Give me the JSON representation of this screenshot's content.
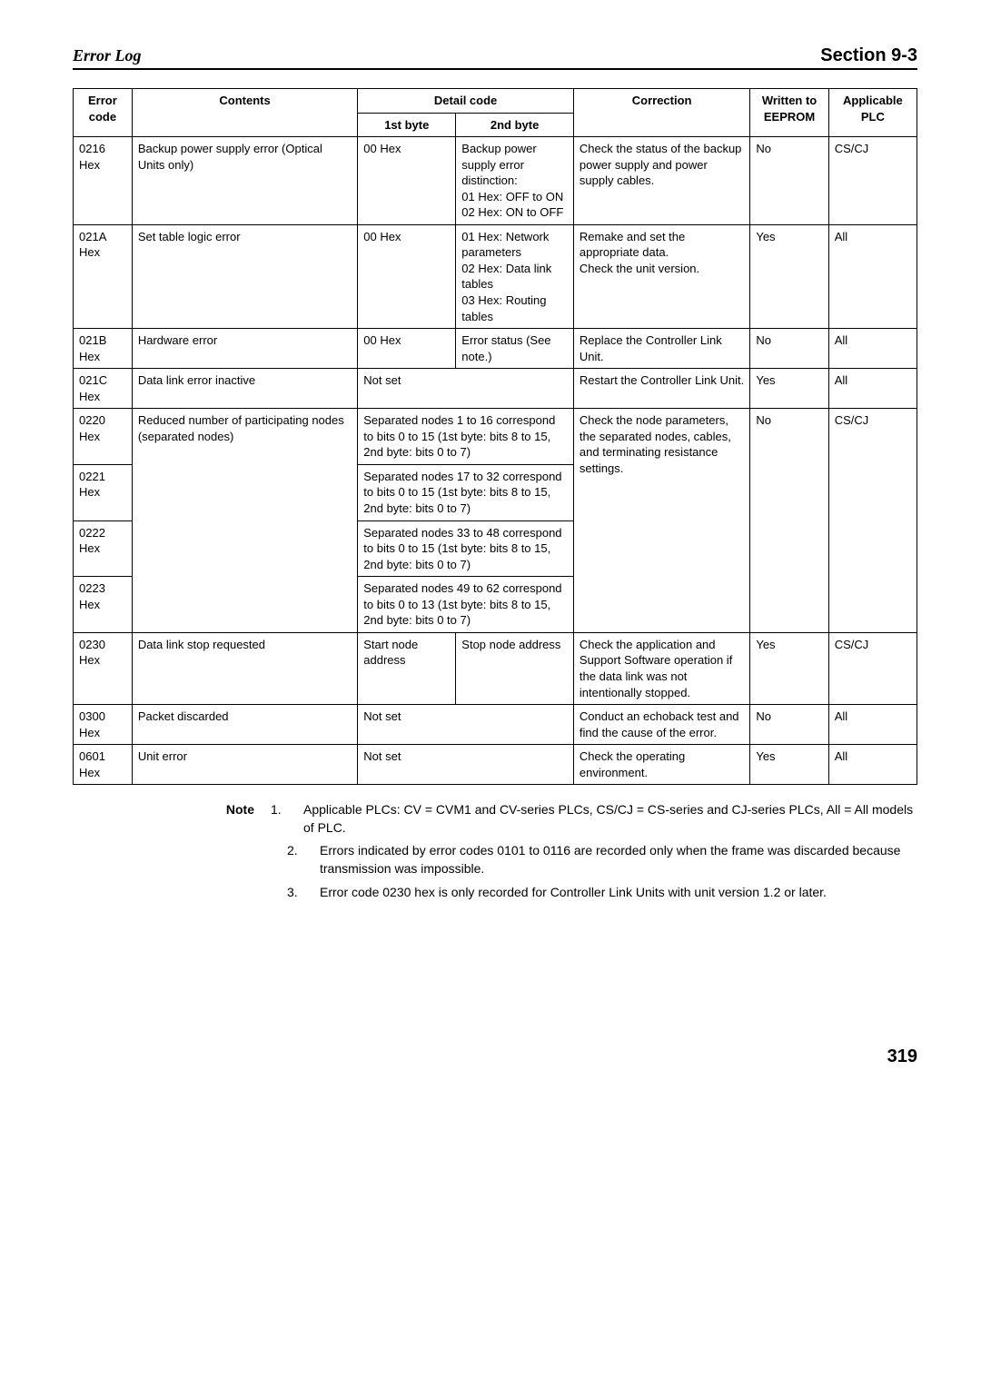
{
  "header": {
    "left": "Error Log",
    "right": "Section 9-3"
  },
  "table": {
    "head": {
      "error_code": "Error code",
      "contents": "Contents",
      "detail_code": "Detail code",
      "byte1": "1st byte",
      "byte2": "2nd byte",
      "correction": "Correction",
      "eeprom": "Written to EEPROM",
      "plc": "Applicable PLC"
    },
    "r0216": {
      "code": "0216 Hex",
      "contents": "Backup power supply error (Optical Units only)",
      "b1": "00 Hex",
      "b2": "Backup power supply error distinction:\n01 Hex: OFF to ON\n02 Hex: ON to OFF",
      "corr": "Check the status of the backup power supply and power supply cables.",
      "eep": "No",
      "plc": "CS/CJ"
    },
    "r021A": {
      "code": "021A Hex",
      "contents": "Set table logic error",
      "b1": "00 Hex",
      "b2": "01 Hex: Network parameters\n02 Hex: Data link tables\n03 Hex: Routing tables",
      "corr": "Remake and set the appropriate data.\nCheck the unit version.",
      "eep": "Yes",
      "plc": "All"
    },
    "r021B": {
      "code": "021B Hex",
      "contents": "Hardware error",
      "b1": "00 Hex",
      "b2": "Error status (See note.)",
      "corr": "Replace the Controller Link Unit.",
      "eep": "No",
      "plc": "All"
    },
    "r021C": {
      "code": "021C Hex",
      "contents": "Data link error inactive",
      "b12": "Not set",
      "corr": "Restart the Controller Link Unit.",
      "eep": "Yes",
      "plc": "All"
    },
    "r0220": {
      "code": "0220 Hex",
      "contents": "Reduced number of participating nodes (separated nodes)",
      "b12": "Separated nodes 1 to 16 correspond to bits 0 to 15 (1st byte: bits 8 to 15, 2nd byte: bits 0 to 7)",
      "corr": "Check the node parameters, the separated nodes, cables, and terminating resistance settings.",
      "eep": "No",
      "plc": "CS/CJ"
    },
    "r0221": {
      "code": "0221 Hex",
      "b12": "Separated nodes 17 to 32 correspond to bits 0 to 15 (1st byte: bits 8 to 15, 2nd byte: bits 0 to 7)"
    },
    "r0222": {
      "code": "0222 Hex",
      "b12": "Separated nodes 33 to 48 correspond to bits 0 to 15 (1st byte: bits 8 to 15, 2nd byte: bits 0 to 7)"
    },
    "r0223": {
      "code": "0223 Hex",
      "b12": "Separated nodes 49 to 62 correspond to bits 0 to 13 (1st byte: bits 8 to 15, 2nd byte: bits 0 to 7)"
    },
    "r0230": {
      "code": "0230 Hex",
      "contents": "Data link stop requested",
      "b1": "Start node address",
      "b2": "Stop node address",
      "corr": "Check the application and Support Software operation if the data link was not intentionally stopped.",
      "eep": "Yes",
      "plc": "CS/CJ"
    },
    "r0300": {
      "code": "0300 Hex",
      "contents": "Packet discarded",
      "b12": "Not set",
      "corr": "Conduct an echoback test and find the cause of the error.",
      "eep": "No",
      "plc": "All"
    },
    "r0601": {
      "code": "0601 Hex",
      "contents": "Unit error",
      "b12": "Not set",
      "corr": "Check the operating environment.",
      "eep": "Yes",
      "plc": "All"
    }
  },
  "notes": {
    "label": "Note",
    "n1": {
      "num": "1.",
      "text": "Applicable PLCs: CV = CVM1 and CV-series PLCs, CS/CJ = CS-series and CJ-series PLCs, All = All models of PLC."
    },
    "n2": {
      "num": "2.",
      "text": "Errors indicated by error codes 0101 to 0116 are recorded only when the frame was discarded because transmission was impossible."
    },
    "n3": {
      "num": "3.",
      "text": "Error code 0230 hex is only recorded for Controller Link Units with unit version 1.2 or later."
    }
  },
  "page_number": "319"
}
